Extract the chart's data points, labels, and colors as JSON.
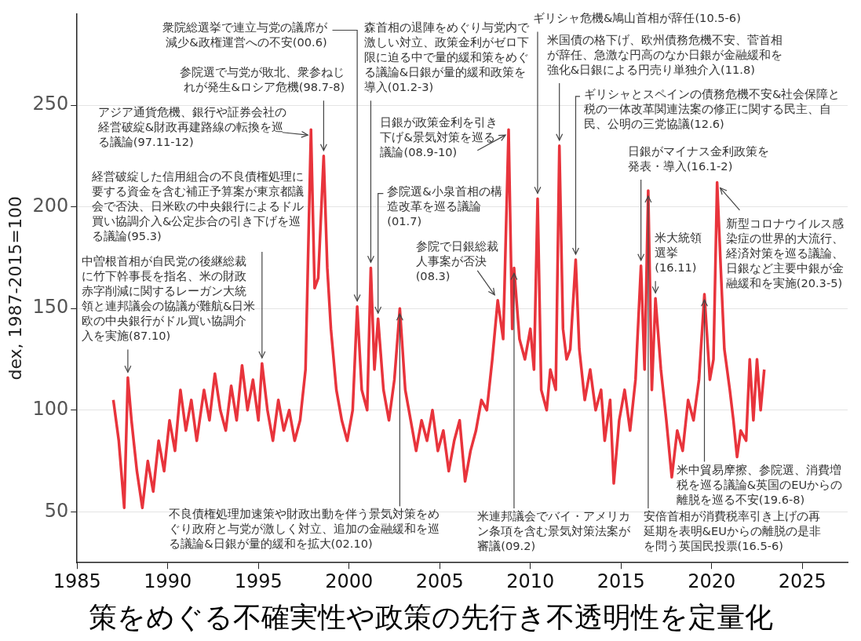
{
  "chart_data": {
    "type": "line",
    "ylabel": "dex, 1987-2015=100",
    "xlim": [
      1985,
      2027.5
    ],
    "xticks": [
      1985,
      1990,
      1995,
      2000,
      2005,
      2010,
      2015,
      2020,
      2025
    ],
    "ylim": [
      25,
      295
    ],
    "yticks": [
      50,
      100,
      150,
      200,
      250
    ],
    "grid": "y",
    "legend": false,
    "marker": "none",
    "line_style": "solid",
    "series": [
      {
        "color": "#e8343c",
        "x": [
          1987.0,
          1987.3,
          1987.6,
          1987.8,
          1988.0,
          1988.3,
          1988.6,
          1988.9,
          1989.2,
          1989.5,
          1989.8,
          1990.1,
          1990.4,
          1990.7,
          1991.0,
          1991.3,
          1991.6,
          1992.0,
          1992.3,
          1992.6,
          1992.9,
          1993.2,
          1993.5,
          1993.8,
          1994.1,
          1994.4,
          1994.7,
          1995.0,
          1995.2,
          1995.5,
          1995.8,
          1996.1,
          1996.4,
          1996.7,
          1997.0,
          1997.3,
          1997.6,
          1997.9,
          1998.1,
          1998.3,
          1998.6,
          1998.8,
          1999.0,
          1999.3,
          1999.6,
          1999.9,
          2000.2,
          2000.45,
          2000.7,
          2001.0,
          2001.2,
          2001.4,
          2001.6,
          2001.9,
          2002.2,
          2002.5,
          2002.8,
          2003.1,
          2003.4,
          2003.7,
          2004.0,
          2004.3,
          2004.6,
          2004.9,
          2005.2,
          2005.5,
          2005.8,
          2006.1,
          2006.4,
          2006.7,
          2007.0,
          2007.3,
          2007.6,
          2007.9,
          2008.2,
          2008.5,
          2008.8,
          2009.0,
          2009.1,
          2009.4,
          2009.7,
          2010.0,
          2010.2,
          2010.4,
          2010.6,
          2010.9,
          2011.1,
          2011.4,
          2011.6,
          2011.8,
          2012.0,
          2012.2,
          2012.5,
          2012.7,
          2013.0,
          2013.3,
          2013.6,
          2013.9,
          2014.1,
          2014.4,
          2014.6,
          2014.9,
          2015.2,
          2015.5,
          2015.8,
          2016.1,
          2016.3,
          2016.5,
          2016.7,
          2016.9,
          2017.2,
          2017.5,
          2017.8,
          2018.1,
          2018.4,
          2018.7,
          2019.0,
          2019.3,
          2019.6,
          2019.9,
          2020.1,
          2020.3,
          2020.5,
          2020.7,
          2021.0,
          2021.2,
          2021.4,
          2021.6,
          2021.9,
          2022.1,
          2022.3,
          2022.5,
          2022.7,
          2022.9
        ],
        "values": [
          105,
          85,
          52,
          116,
          95,
          70,
          52,
          75,
          60,
          85,
          70,
          95,
          80,
          110,
          90,
          105,
          85,
          110,
          95,
          118,
          100,
          90,
          112,
          95,
          122,
          100,
          115,
          95,
          123,
          100,
          85,
          105,
          90,
          100,
          85,
          95,
          120,
          238,
          160,
          165,
          225,
          170,
          140,
          110,
          95,
          85,
          100,
          151,
          110,
          100,
          170,
          120,
          145,
          110,
          95,
          115,
          150,
          110,
          95,
          80,
          95,
          85,
          100,
          80,
          90,
          70,
          85,
          95,
          65,
          80,
          90,
          105,
          100,
          125,
          154,
          135,
          238,
          140,
          170,
          135,
          125,
          140,
          120,
          204,
          110,
          100,
          120,
          110,
          230,
          140,
          125,
          130,
          174,
          130,
          105,
          120,
          100,
          110,
          85,
          105,
          64,
          95,
          110,
          90,
          115,
          171,
          120,
          208,
          110,
          155,
          120,
          95,
          67,
          90,
          80,
          105,
          95,
          115,
          157,
          115,
          125,
          212,
          170,
          130,
          110,
          95,
          77,
          90,
          85,
          125,
          95,
          125,
          100,
          120
        ]
      }
    ],
    "annotations": [
      {
        "text": "衆院総選挙で連立与党の議席が減少&政権運営への不安(00.6)",
        "x": 2000.45,
        "y": 151
      },
      {
        "text": "参院選で与党が敗北、衆参ねじれが発生&ロシア危機(98.7-8)",
        "x": 1998.6,
        "y": 225
      },
      {
        "text": "アジア通貨危機、銀行や証券会社の経営破綻&財政再建路線の転換を巡る議論(97.11-12)",
        "x": 1997.9,
        "y": 238
      },
      {
        "text": "経営破綻した信用組合の不良債権処理に要する資金を含む補正予算案が東京都議会で否決、日米欧の中央銀行によるドル買い協調介入&公定歩合の引き下げを巡る議論(95.3)",
        "x": 1995.2,
        "y": 123
      },
      {
        "text": "中曽根首相が自民党の後継総裁に竹下幹事長を指名、米の財政赤字削減に関するレーガン大統領と連邦議会の協議が難航&日米欧の中央銀行がドル買い協調介入を実施(87.10)",
        "x": 1987.8,
        "y": 116
      },
      {
        "text": "森首相の退陣をめぐり与党内で激しい対立、政策金利がゼロ下限に迫る中で量的緩和策をめぐる議論&日銀が量的緩和政策を導入(01.2-3)",
        "x": 2001.2,
        "y": 170
      },
      {
        "text": "参院選&小泉首相の構造改革を巡る議論(01.7)",
        "x": 2001.6,
        "y": 145
      },
      {
        "text": "日銀が政策金利を引き下げ&景気対策を巡る議論(08.9-10)",
        "x": 2008.8,
        "y": 238
      },
      {
        "text": "参院で日銀総裁人事案が否決(08.3)",
        "x": 2008.2,
        "y": 154
      },
      {
        "text": "不良債権処理加速策や財政出動を伴う景気対策をめぐり政府と与党が激しく対立、追加の金融緩和を巡る議論&日銀が量的緩和を拡大(02.10)",
        "x": 2002.8,
        "y": 150
      },
      {
        "text": "米連邦議会でバイ・アメリカン条項を含む景気対策法案が審議(09.2)",
        "x": 2009.1,
        "y": 170
      },
      {
        "text": "ギリシャ危機&鳩山首相が辞任(10.5-6)",
        "x": 2010.4,
        "y": 204
      },
      {
        "text": "米国債の格下げ、欧州債務危機不安、菅首相が辞任、急激な円高のなか日銀が金融緩和を強化&日銀による円売り単独介入(11.8)",
        "x": 2011.6,
        "y": 230
      },
      {
        "text": "ギリシャとスペインの債務危機不安&社会保障と税の一体改革関連法案の修正に関する民主、自民、公明の三党協議(12.6)",
        "x": 2012.5,
        "y": 174
      },
      {
        "text": "日銀がマイナス金利政策を発表・導入(16.1-2)",
        "x": 2016.1,
        "y": 171
      },
      {
        "text": "米大統領選挙(16.11)",
        "x": 2016.9,
        "y": 155
      },
      {
        "text": "新型コロナウイルス感染症の世界的大流行、経済対策を巡る議論、日銀など主要中銀が金融緩和を実施(20.3-5)",
        "x": 2020.3,
        "y": 212
      },
      {
        "text": "米中貿易摩擦、参院選、消費増税を巡る議論&英国のEUからの離脱を巡る不安(19.6-8)",
        "x": 2019.6,
        "y": 157
      },
      {
        "text": "安倍首相が消費税率引き上げの再延期を表明&EUからの離脱の是非を問う英国民投票(16.5-6)",
        "x": 2016.5,
        "y": 208
      },
      "策をめぐる不確実性や政策の先行き不透明性を定量化"
    ]
  }
}
